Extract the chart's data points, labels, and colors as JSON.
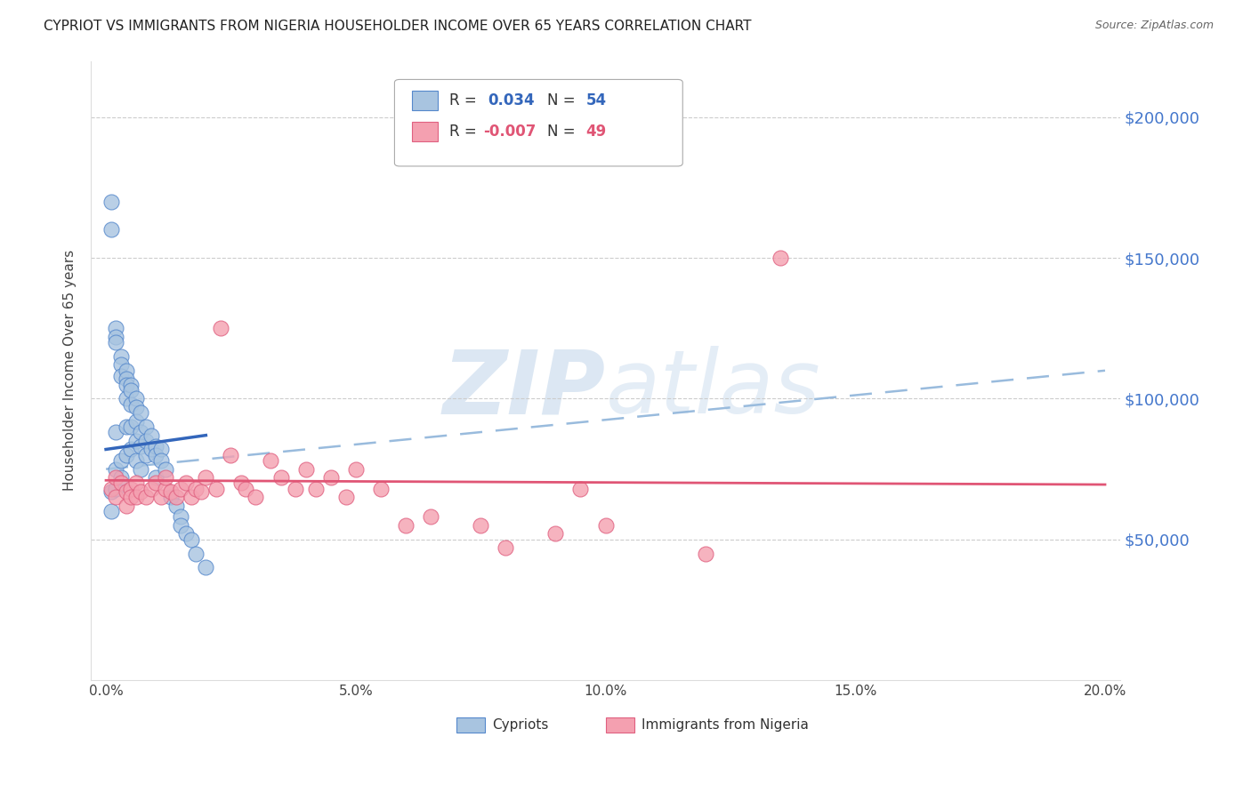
{
  "title": "CYPRIOT VS IMMIGRANTS FROM NIGERIA HOUSEHOLDER INCOME OVER 65 YEARS CORRELATION CHART",
  "source": "Source: ZipAtlas.com",
  "ylabel": "Householder Income Over 65 years",
  "xlabel_ticks": [
    "0.0%",
    "5.0%",
    "10.0%",
    "15.0%",
    "20.0%"
  ],
  "xlabel_vals": [
    0.0,
    0.05,
    0.1,
    0.15,
    0.2
  ],
  "ytick_labels": [
    "$50,000",
    "$100,000",
    "$150,000",
    "$200,000"
  ],
  "ytick_vals": [
    50000,
    100000,
    150000,
    200000
  ],
  "ylim": [
    0,
    220000
  ],
  "xlim": [
    -0.003,
    0.203
  ],
  "blue_R": "0.034",
  "blue_N": "54",
  "pink_R": "-0.007",
  "pink_N": "49",
  "legend_label_blue": "Cypriots",
  "legend_label_pink": "Immigrants from Nigeria",
  "blue_fill": "#a8c4e0",
  "pink_fill": "#f4a0b0",
  "blue_edge": "#5588cc",
  "pink_edge": "#e06080",
  "blue_line_color": "#3366bb",
  "pink_line_color": "#e05575",
  "dashed_line_color": "#99bbdd",
  "watermark_color": "#c5d8ec",
  "blue_scatter_x": [
    0.001,
    0.001,
    0.001,
    0.001,
    0.002,
    0.002,
    0.002,
    0.002,
    0.002,
    0.002,
    0.003,
    0.003,
    0.003,
    0.003,
    0.003,
    0.004,
    0.004,
    0.004,
    0.004,
    0.004,
    0.004,
    0.005,
    0.005,
    0.005,
    0.005,
    0.005,
    0.006,
    0.006,
    0.006,
    0.006,
    0.006,
    0.007,
    0.007,
    0.007,
    0.007,
    0.008,
    0.008,
    0.008,
    0.009,
    0.009,
    0.01,
    0.01,
    0.01,
    0.011,
    0.011,
    0.012,
    0.013,
    0.014,
    0.015,
    0.015,
    0.016,
    0.017,
    0.018,
    0.02
  ],
  "blue_scatter_y": [
    170000,
    160000,
    67000,
    60000,
    125000,
    122000,
    120000,
    88000,
    75000,
    68000,
    115000,
    112000,
    108000,
    78000,
    72000,
    110000,
    107000,
    105000,
    100000,
    90000,
    80000,
    105000,
    103000,
    98000,
    90000,
    82000,
    100000,
    97000,
    92000,
    85000,
    78000,
    95000,
    88000,
    83000,
    75000,
    90000,
    85000,
    80000,
    87000,
    82000,
    83000,
    80000,
    72000,
    82000,
    78000,
    75000,
    65000,
    62000,
    58000,
    55000,
    52000,
    50000,
    45000,
    40000
  ],
  "pink_scatter_x": [
    0.001,
    0.002,
    0.002,
    0.003,
    0.004,
    0.004,
    0.005,
    0.005,
    0.006,
    0.006,
    0.007,
    0.008,
    0.009,
    0.01,
    0.011,
    0.012,
    0.012,
    0.013,
    0.014,
    0.015,
    0.016,
    0.017,
    0.018,
    0.019,
    0.02,
    0.022,
    0.023,
    0.025,
    0.027,
    0.028,
    0.03,
    0.033,
    0.035,
    0.038,
    0.04,
    0.042,
    0.045,
    0.048,
    0.05,
    0.055,
    0.06,
    0.065,
    0.075,
    0.08,
    0.09,
    0.095,
    0.1,
    0.12,
    0.135
  ],
  "pink_scatter_y": [
    68000,
    72000,
    65000,
    70000,
    67000,
    62000,
    68000,
    65000,
    70000,
    65000,
    67000,
    65000,
    68000,
    70000,
    65000,
    68000,
    72000,
    67000,
    65000,
    68000,
    70000,
    65000,
    68000,
    67000,
    72000,
    68000,
    125000,
    80000,
    70000,
    68000,
    65000,
    78000,
    72000,
    68000,
    75000,
    68000,
    72000,
    65000,
    75000,
    68000,
    55000,
    58000,
    55000,
    47000,
    52000,
    68000,
    55000,
    45000,
    150000
  ],
  "blue_line_x": [
    0.0,
    0.02
  ],
  "blue_line_y": [
    82000,
    87000
  ],
  "pink_line_x": [
    0.0,
    0.2
  ],
  "pink_line_y": [
    71000,
    69500
  ],
  "dash_line_x": [
    0.0,
    0.2
  ],
  "dash_line_y": [
    75000,
    110000
  ]
}
